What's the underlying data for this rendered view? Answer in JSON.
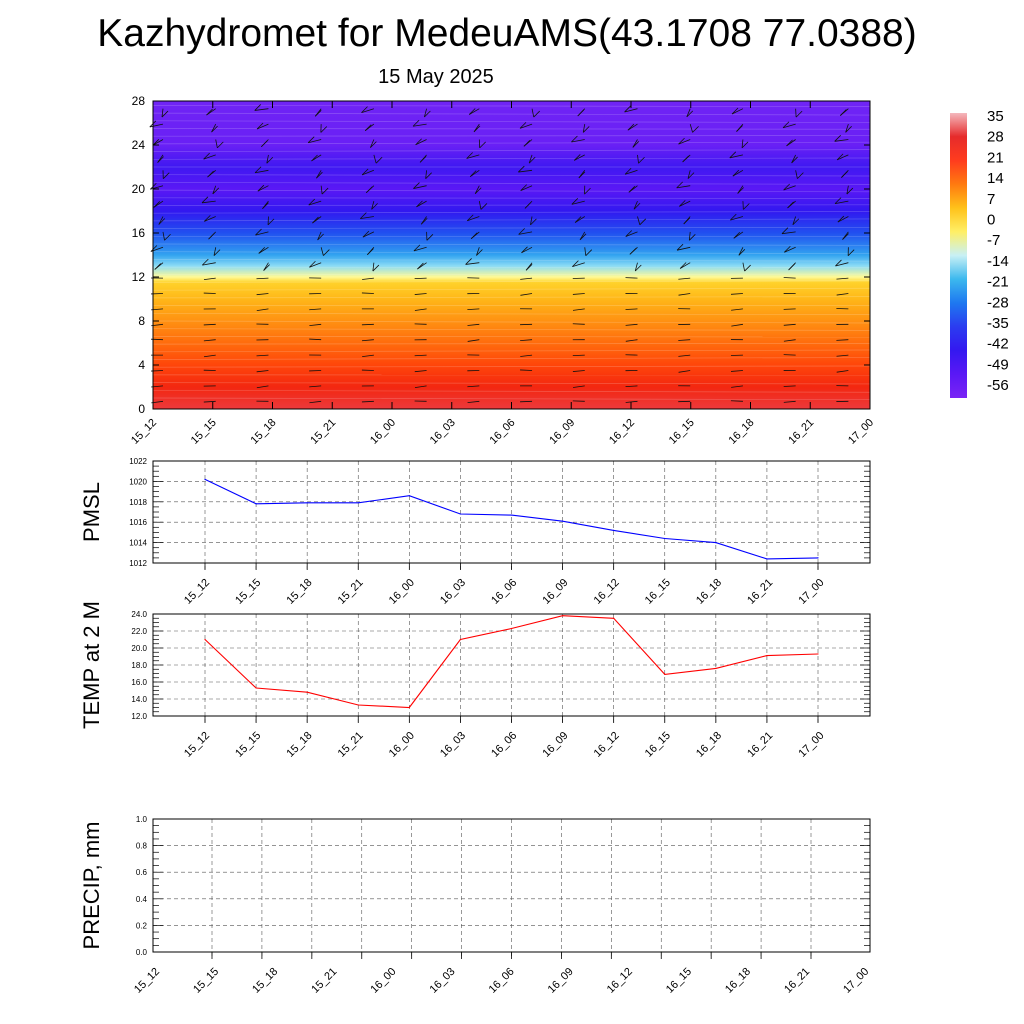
{
  "header": {
    "title": "Kazhydromet for MedeuAMS(43.1708 77.0388)",
    "subtitle": "15 May 2025"
  },
  "time_labels": [
    "15_12",
    "15_15",
    "15_18",
    "15_21",
    "16_00",
    "16_03",
    "16_06",
    "16_09",
    "16_12",
    "16_15",
    "16_18",
    "16_21",
    "17_00"
  ],
  "colorbar": {
    "labels": [
      "35",
      "28",
      "21",
      "14",
      "7",
      "0",
      "-7",
      "-14",
      "-21",
      "-28",
      "-35",
      "-42",
      "-49",
      "-56"
    ],
    "colors": [
      "#f4b8bd",
      "#e62b2b",
      "#ff3c1e",
      "#ff7a10",
      "#ffc21a",
      "#ffef66",
      "#c8f0f5",
      "#3cb8ee",
      "#1e78f0",
      "#2b3cf0",
      "#3418f0",
      "#5a18f5",
      "#7a24f5"
    ]
  },
  "chart_data": [
    {
      "type": "heatmap",
      "title": "",
      "xlabel": "",
      "ylabel": "",
      "categories": [
        "15_12",
        "15_15",
        "15_18",
        "15_21",
        "16_00",
        "16_03",
        "16_06",
        "16_09",
        "16_12",
        "16_15",
        "16_18",
        "16_21",
        "17_00"
      ],
      "yticks": [
        0,
        4,
        8,
        12,
        16,
        20,
        24,
        28
      ],
      "ylim": [
        0,
        28
      ],
      "zlim": [
        -56,
        35
      ],
      "temperature_profile": [
        {
          "y": 0,
          "t": 30
        },
        {
          "y": 2,
          "t": 25
        },
        {
          "y": 4,
          "t": 20
        },
        {
          "y": 6,
          "t": 15
        },
        {
          "y": 8,
          "t": 10
        },
        {
          "y": 10,
          "t": 5
        },
        {
          "y": 11.5,
          "t": 0
        },
        {
          "y": 12,
          "t": -10
        },
        {
          "y": 13,
          "t": -20
        },
        {
          "y": 14,
          "t": -30
        },
        {
          "y": 16,
          "t": -40
        },
        {
          "y": 18,
          "t": -50
        },
        {
          "y": 20,
          "t": -56
        },
        {
          "y": 22,
          "t": -52
        },
        {
          "y": 24,
          "t": -60
        },
        {
          "y": 28,
          "t": -62
        }
      ]
    },
    {
      "type": "line",
      "ylabel": "PMSL",
      "categories": [
        "15_12",
        "15_15",
        "15_18",
        "15_21",
        "16_00",
        "16_03",
        "16_06",
        "16_09",
        "16_12",
        "16_15",
        "16_18",
        "16_21",
        "17_00"
      ],
      "values": [
        1020.2,
        1017.8,
        1017.9,
        1017.9,
        1018.6,
        1016.8,
        1016.7,
        1016.1,
        1015.2,
        1014.4,
        1014.0,
        1012.4,
        1012.5
      ],
      "ylim": [
        1012,
        1022
      ],
      "yticks": [
        "1012",
        "1014",
        "1016",
        "1018",
        "1020",
        "1022"
      ],
      "color": "#0000ff"
    },
    {
      "type": "line",
      "ylabel": "TEMP at 2 M",
      "categories": [
        "15_12",
        "15_15",
        "15_18",
        "15_21",
        "16_00",
        "16_03",
        "16_06",
        "16_09",
        "16_12",
        "16_15",
        "16_18",
        "16_21",
        "17_00"
      ],
      "values": [
        21.0,
        15.3,
        14.8,
        13.3,
        13.0,
        21.0,
        22.3,
        23.8,
        23.5,
        16.9,
        17.6,
        19.1,
        19.3
      ],
      "ylim": [
        12,
        24
      ],
      "yticks": [
        "12.0",
        "14.0",
        "16.0",
        "18.0",
        "20.0",
        "22.0",
        "24.0"
      ],
      "color": "#ff0000"
    },
    {
      "type": "line",
      "ylabel": "PRECIP, mm",
      "categories": [
        "15_12",
        "15_15",
        "15_18",
        "15_21",
        "16_00",
        "16_03",
        "16_06",
        "16_09",
        "16_12",
        "16_15",
        "16_18",
        "16_21",
        "17_00"
      ],
      "values": [
        0,
        0,
        0,
        0,
        0,
        0,
        0,
        0,
        0,
        0,
        0,
        0,
        0
      ],
      "ylim": [
        0,
        1
      ],
      "yticks": [
        "0.0",
        "0.2",
        "0.4",
        "0.6",
        "0.8",
        "1.0"
      ],
      "color": "#006400"
    }
  ]
}
